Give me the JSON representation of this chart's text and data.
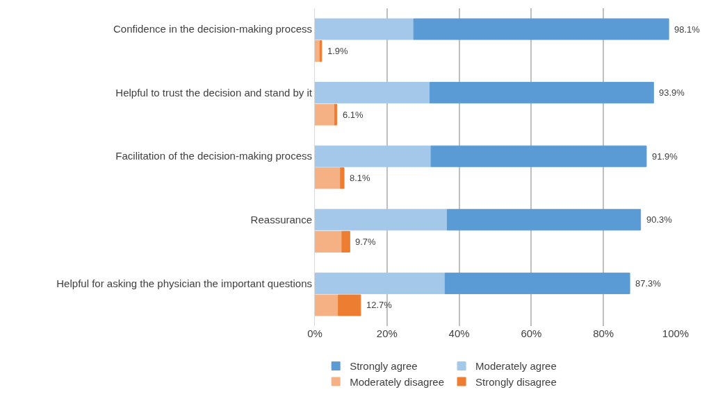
{
  "chart_data": {
    "type": "bar",
    "orientation": "horizontal",
    "stacked": true,
    "categories": [
      "Confidence in the decision-making process",
      null,
      "Helpful to trust the decision and stand by it",
      null,
      "Facilitation of the decision-making process",
      null,
      "Reassurance",
      null,
      "Helpful for asking the physician the important questions",
      null
    ],
    "series": [
      {
        "name": "Moderately agree",
        "color": "#a4c8ea",
        "values": [
          27.4,
          null,
          31.9,
          null,
          32.2,
          null,
          36.7,
          null,
          36.1,
          null
        ]
      },
      {
        "name": "Strongly agree",
        "color": "#5b9bd5",
        "values": [
          70.7,
          null,
          62.0,
          null,
          59.7,
          null,
          53.6,
          null,
          51.2,
          null
        ]
      },
      {
        "name": "Moderately disagree",
        "color": "#f5b183",
        "values": [
          null,
          1.4,
          null,
          5.5,
          null,
          7.1,
          null,
          7.5,
          null,
          6.5
        ]
      },
      {
        "name": "Strongly disagree",
        "color": "#ed7d31",
        "values": [
          null,
          0.5,
          null,
          0.6,
          null,
          1.0,
          null,
          2.2,
          null,
          6.2
        ]
      }
    ],
    "totals": [
      "98.1%",
      "1.9%",
      "93.9%",
      "6.1%",
      "91.9%",
      "8.1%",
      "90.3%",
      "9.7%",
      "87.3%",
      "12.7%"
    ],
    "xlim": [
      0,
      100
    ],
    "xticks": [
      {
        "value": 0,
        "label": "0%"
      },
      {
        "value": 20,
        "label": "20%"
      },
      {
        "value": 40,
        "label": "40%"
      },
      {
        "value": 60,
        "label": "60%"
      },
      {
        "value": 80,
        "label": "80%"
      },
      {
        "value": 100,
        "label": "100%"
      }
    ],
    "grid": "x",
    "legend": "bottom"
  }
}
